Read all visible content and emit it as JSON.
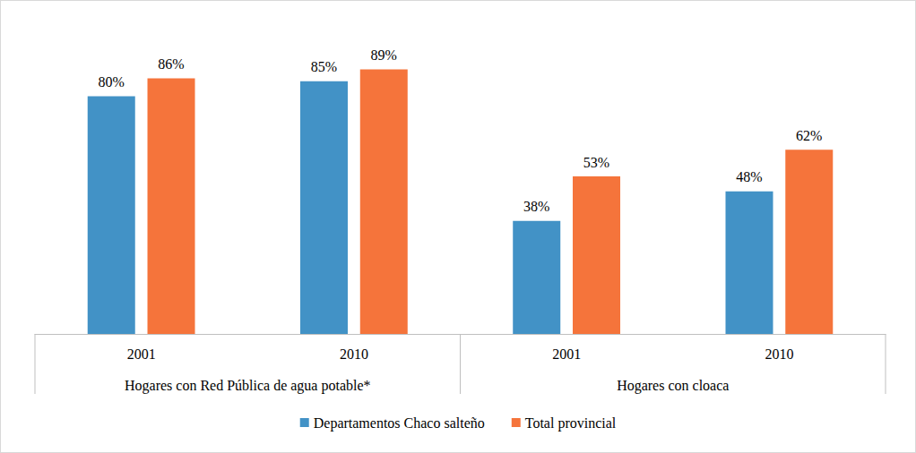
{
  "chart_data": {
    "type": "bar",
    "categories": [
      "2001",
      "2010",
      "2001",
      "2010"
    ],
    "category_groups": [
      "Hogares con Red Pública de agua potable*",
      "Hogares con Red Pública de agua potable*",
      "Hogares con cloaca",
      "Hogares con cloaca"
    ],
    "series": [
      {
        "name": "Departamentos Chaco salteño",
        "color": "#4292c6",
        "values": [
          80,
          85,
          38,
          48
        ],
        "value_labels": [
          "80%",
          "85%",
          "38%",
          "48%"
        ]
      },
      {
        "name": "Total provincial",
        "color": "#f5743b",
        "values": [
          86,
          89,
          53,
          62
        ],
        "value_labels": [
          "86%",
          "89%",
          "53%",
          "62%"
        ]
      }
    ],
    "ylim": [
      0,
      100
    ],
    "grid": false,
    "data_labels": true,
    "tick_labels": "x",
    "legend": "bottom"
  }
}
